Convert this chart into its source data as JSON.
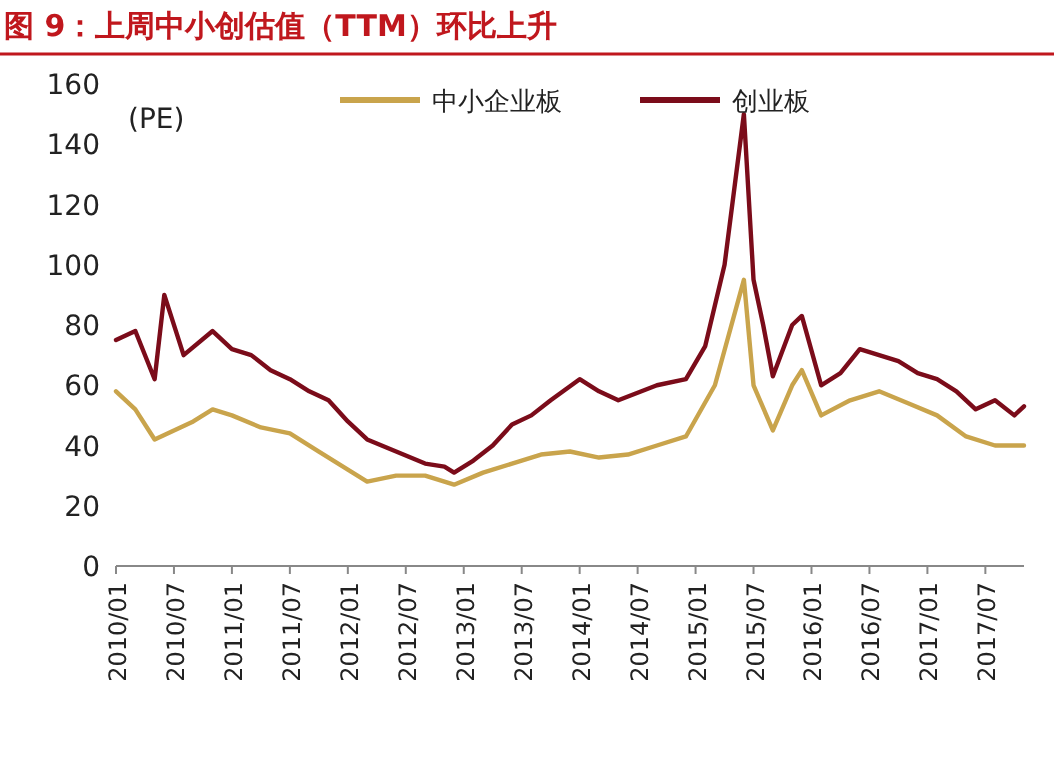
{
  "chart_data": {
    "type": "line",
    "title": "图 9：上周中小创估值（TTM）环比上升",
    "ylabel": "(PE)",
    "legend": "top",
    "grid": false,
    "marker": "none",
    "line_style": "solid",
    "ylim": [
      0,
      160
    ],
    "yticks": [
      0,
      20,
      40,
      60,
      80,
      100,
      120,
      140,
      160
    ],
    "xlim": [
      "2010-01",
      "2017-11"
    ],
    "xticks": [
      {
        "value": "2010-01",
        "label": "2010/01"
      },
      {
        "value": "2010-07",
        "label": "2010/07"
      },
      {
        "value": "2011-01",
        "label": "2011/01"
      },
      {
        "value": "2011-07",
        "label": "2011/07"
      },
      {
        "value": "2012-01",
        "label": "2012/01"
      },
      {
        "value": "2012-07",
        "label": "2012/07"
      },
      {
        "value": "2013-01",
        "label": "2013/01"
      },
      {
        "value": "2013-07",
        "label": "2013/07"
      },
      {
        "value": "2014-01",
        "label": "2014/01"
      },
      {
        "value": "2014-07",
        "label": "2014/07"
      },
      {
        "value": "2015-01",
        "label": "2015/01"
      },
      {
        "value": "2015-07",
        "label": "2015/07"
      },
      {
        "value": "2016-01",
        "label": "2016/01"
      },
      {
        "value": "2016-07",
        "label": "2016/07"
      },
      {
        "value": "2017-01",
        "label": "2017/01"
      },
      {
        "value": "2017-07",
        "label": "2017/07"
      }
    ],
    "series": [
      {
        "name": "中小企业板",
        "color": "#c9a44c",
        "x": [
          "2010-01",
          "2010-03",
          "2010-05",
          "2010-07",
          "2010-09",
          "2010-11",
          "2011-01",
          "2011-04",
          "2011-07",
          "2011-10",
          "2012-01",
          "2012-03",
          "2012-06",
          "2012-09",
          "2012-12",
          "2013-03",
          "2013-06",
          "2013-09",
          "2013-12",
          "2014-03",
          "2014-06",
          "2014-09",
          "2014-12",
          "2015-03",
          "2015-06",
          "2015-07",
          "2015-09",
          "2015-11",
          "2015-12",
          "2016-02",
          "2016-05",
          "2016-08",
          "2016-11",
          "2017-02",
          "2017-05",
          "2017-08",
          "2017-11"
        ],
        "values": [
          58,
          52,
          42,
          45,
          48,
          52,
          50,
          46,
          44,
          38,
          32,
          28,
          30,
          30,
          27,
          31,
          34,
          37,
          38,
          36,
          37,
          40,
          43,
          60,
          95,
          60,
          45,
          60,
          65,
          50,
          55,
          58,
          54,
          50,
          43,
          40,
          40
        ]
      },
      {
        "name": "创业板",
        "color": "#7b0c1a",
        "x": [
          "2010-01",
          "2010-03",
          "2010-05",
          "2010-06",
          "2010-08",
          "2010-11",
          "2011-01",
          "2011-03",
          "2011-05",
          "2011-07",
          "2011-09",
          "2011-11",
          "2012-01",
          "2012-03",
          "2012-06",
          "2012-09",
          "2012-11",
          "2012-12",
          "2013-02",
          "2013-04",
          "2013-06",
          "2013-08",
          "2013-10",
          "2014-01",
          "2014-03",
          "2014-05",
          "2014-09",
          "2014-12",
          "2015-02",
          "2015-04",
          "2015-06",
          "2015-07",
          "2015-08",
          "2015-09",
          "2015-11",
          "2015-12",
          "2016-02",
          "2016-04",
          "2016-06",
          "2016-08",
          "2016-10",
          "2016-12",
          "2017-02",
          "2017-04",
          "2017-06",
          "2017-08",
          "2017-10",
          "2017-11"
        ],
        "values": [
          75,
          78,
          62,
          90,
          70,
          78,
          72,
          70,
          65,
          62,
          58,
          55,
          48,
          42,
          38,
          34,
          33,
          31,
          35,
          40,
          47,
          50,
          55,
          62,
          58,
          55,
          60,
          62,
          73,
          100,
          150,
          95,
          80,
          63,
          80,
          83,
          60,
          64,
          72,
          70,
          68,
          64,
          62,
          58,
          52,
          55,
          50,
          53
        ]
      }
    ]
  }
}
